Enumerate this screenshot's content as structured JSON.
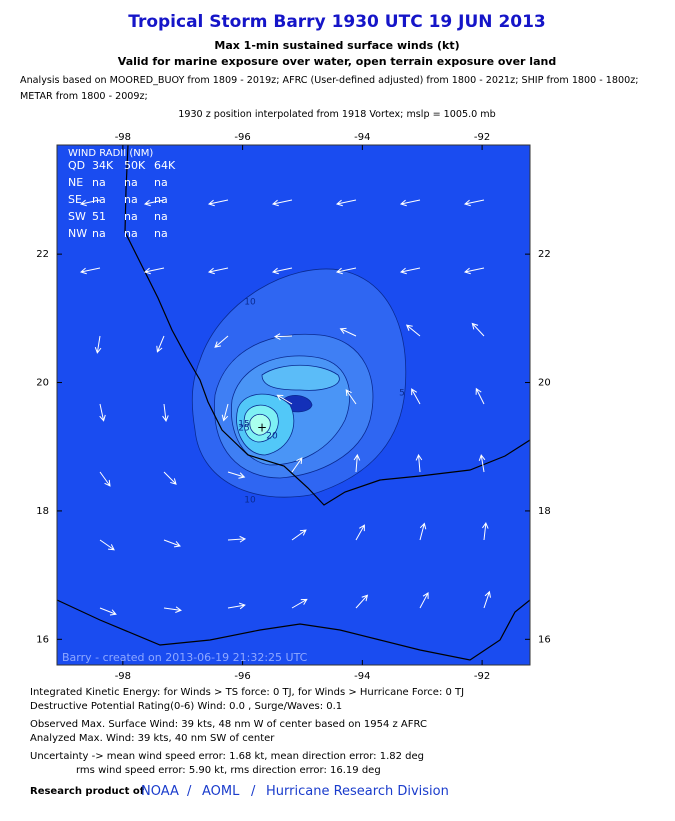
{
  "header": {
    "title": "Tropical Storm Barry 1930 UTC 19 JUN 2013",
    "subtitle": "Max 1-min sustained surface winds (kt)",
    "subtitle2": "Valid for marine exposure over water, open terrain exposure over land",
    "analysis_lines": [
      "Analysis based on MOORED_BUOY from 1809 - 2019z; AFRC (User-defined adjusted) from 1800 - 2021z; SHIP from 1800 - 1800z;",
      "METAR from 1800 - 2009z;"
    ],
    "position": "1930 z position interpolated from 1918 Vortex; mslp = 1005.0 mb"
  },
  "map": {
    "xlim": [
      -99.1,
      -91.2
    ],
    "ylim": [
      15.6,
      23.7
    ],
    "xticks": [
      -98,
      -96,
      -94,
      -92
    ],
    "yticks": [
      22,
      20,
      18,
      16
    ],
    "wind_radii": {
      "title": "WIND RADII (NM)",
      "header": [
        "QD",
        "34K",
        "50K",
        "64K"
      ],
      "rows": [
        [
          "NE",
          "na",
          "na",
          "na"
        ],
        [
          "SE",
          "na",
          "na",
          "na"
        ],
        [
          "SW",
          "51",
          "na",
          "na"
        ],
        [
          "NW",
          "na",
          "na",
          "na"
        ]
      ]
    },
    "contour_labels": [
      "10",
      "5",
      "15",
      "25",
      "20",
      "10"
    ],
    "center_marker": "+",
    "stamp": "Barry - created on 2013-06-19 21:32:25 UTC"
  },
  "footer": {
    "lines": [
      "Integrated Kinetic Energy: for Winds > TS force: 0 TJ, for Winds > Hurricane Force: 0 TJ",
      "Destructive Potential Rating(0-6)  Wind: 0.0 , Surge/Waves: 0.1",
      "Observed Max. Surface Wind: 39 kts, 48 nm W of center based on 1954 z AFRC",
      "Analyzed Max. Wind: 39 kts, 40 nm  SW of center",
      "Uncertainty -> mean wind speed error: 1.68 kt, mean direction error: 1.82 deg",
      "rms wind speed error: 5.90 kt, rms direction error: 16.19 deg"
    ],
    "research": "Research product of",
    "links": [
      "NOAA",
      "/",
      "AOML",
      "/",
      "Hurricane Research Division"
    ]
  }
}
